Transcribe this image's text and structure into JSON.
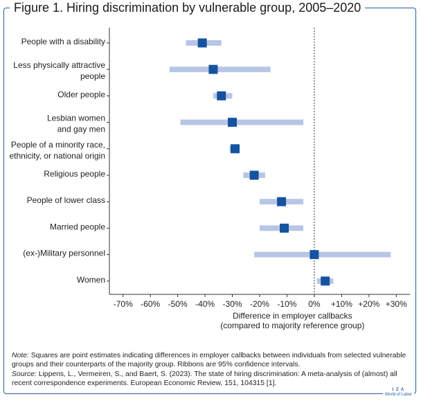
{
  "figure": {
    "title": "Figure 1. Hiring discrimination by vulnerable group, 2005–2020",
    "note_label": "Note:",
    "note_text": "Squares are point estimates indicating differences in employer callbacks between individuals from selected vulnerable groups and their counterparts of the majority group. Ribbons are 95% confidence intervals.",
    "source_label": "Source:",
    "source_text": "Lippens, L., Vermeiren, S., and Baert, S. (2023). The state of hiring discrimination: A meta-analysis of (almost) all recent correspondence experiments. European Economic Review, 151, 104315 [1].",
    "logo_top": "I Z A",
    "logo_bottom": "World of Labor"
  },
  "colors": {
    "frame": "#1f5c9e",
    "point": "#1553a0",
    "ribbon": "#b8c6e6"
  },
  "chart_data": {
    "type": "scatter",
    "orientation": "horizontal",
    "title": "Figure 1. Hiring discrimination by vulnerable group, 2005–2020",
    "xlabel_lines": [
      "Difference in employer callbacks",
      "(compared to majority reference group)"
    ],
    "ylabel": "",
    "xlim": [
      -75,
      35
    ],
    "xticks": [
      -70,
      -60,
      -50,
      -40,
      -30,
      -20,
      -10,
      0,
      10,
      20,
      30
    ],
    "xtick_labels": [
      "-70%",
      "-60%",
      "-50%",
      "-40%",
      "-30%",
      "-20%",
      "-10%",
      "0%",
      "+10%",
      "+20%",
      "+30%"
    ],
    "reference_line": 0,
    "grid": false,
    "legend": "none",
    "groups": [
      {
        "label_lines": [
          "People with a disability"
        ],
        "estimate": -41,
        "ci": [
          -47,
          -34
        ]
      },
      {
        "label_lines": [
          "Less physically attractive",
          "people"
        ],
        "estimate": -37,
        "ci": [
          -53,
          -16
        ]
      },
      {
        "label_lines": [
          "Older people"
        ],
        "estimate": -34,
        "ci": [
          -37,
          -30
        ]
      },
      {
        "label_lines": [
          "Lesbian women",
          "and gay men"
        ],
        "estimate": -30,
        "ci": [
          -49,
          -4
        ]
      },
      {
        "label_lines": [
          "People of a minority race,",
          "ethnicity, or national origin"
        ],
        "estimate": -29,
        "ci": [
          -31,
          -28
        ]
      },
      {
        "label_lines": [
          "Religious people"
        ],
        "estimate": -22,
        "ci": [
          -26,
          -18
        ]
      },
      {
        "label_lines": [
          "People of lower class"
        ],
        "estimate": -12,
        "ci": [
          -20,
          -4
        ]
      },
      {
        "label_lines": [
          "Married people"
        ],
        "estimate": -11,
        "ci": [
          -20,
          -4
        ]
      },
      {
        "label_lines": [
          "(ex-)Military personnel"
        ],
        "estimate": 0,
        "ci": [
          -22,
          28
        ]
      },
      {
        "label_lines": [
          "Women"
        ],
        "estimate": 4,
        "ci": [
          1,
          7
        ]
      }
    ]
  }
}
